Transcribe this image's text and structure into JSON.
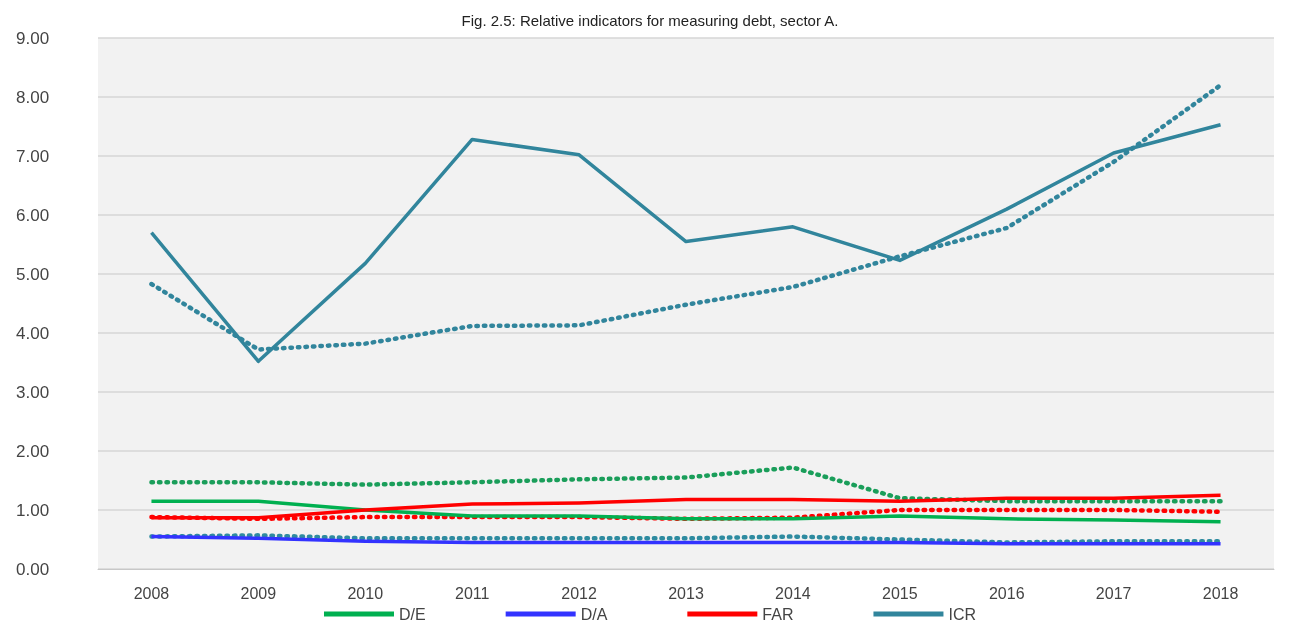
{
  "chart_data": {
    "type": "line",
    "title": "Fig. 2.5: Relative indicators for measuring debt, sector A.",
    "categories": [
      "2008",
      "2009",
      "2010",
      "2011",
      "2012",
      "2013",
      "2014",
      "2015",
      "2016",
      "2017",
      "2018"
    ],
    "series": [
      {
        "name": "D/E",
        "color": "#00b050",
        "values": [
          1.15,
          1.15,
          1.0,
          0.9,
          0.9,
          0.85,
          0.85,
          0.9,
          0.85,
          0.83,
          0.8
        ]
      },
      {
        "name": "D/A",
        "color": "#3333ff",
        "values": [
          0.55,
          0.52,
          0.47,
          0.45,
          0.45,
          0.45,
          0.45,
          0.45,
          0.43,
          0.43,
          0.43
        ]
      },
      {
        "name": "FAR",
        "color": "#ff0000",
        "values": [
          0.87,
          0.87,
          1.0,
          1.1,
          1.12,
          1.18,
          1.18,
          1.15,
          1.2,
          1.2,
          1.25
        ]
      },
      {
        "name": "ICR",
        "color": "#31859c",
        "values": [
          5.7,
          3.52,
          5.18,
          7.28,
          7.02,
          5.55,
          5.8,
          5.23,
          6.1,
          7.05,
          7.53
        ]
      },
      {
        "color": "#1a9e5a",
        "line_style": "dotted",
        "values": [
          1.47,
          1.47,
          1.43,
          1.47,
          1.52,
          1.55,
          1.72,
          1.2,
          1.15,
          1.15,
          1.15
        ]
      },
      {
        "color": "#2e8ba0",
        "line_style": "dotted",
        "values": [
          0.55,
          0.57,
          0.52,
          0.52,
          0.52,
          0.52,
          0.55,
          0.5,
          0.45,
          0.47,
          0.47
        ]
      },
      {
        "color": "#ff0000",
        "line_style": "dotted",
        "values": [
          0.88,
          0.85,
          0.88,
          0.88,
          0.88,
          0.85,
          0.87,
          1.0,
          1.0,
          1.0,
          0.97
        ]
      },
      {
        "color": "#31859c",
        "line_style": "dotted",
        "values": [
          4.83,
          3.72,
          3.82,
          4.12,
          4.13,
          4.48,
          4.78,
          5.3,
          5.78,
          6.9,
          8.2
        ]
      }
    ],
    "ylim": [
      0,
      9
    ],
    "yticks": [
      {
        "value": 0,
        "label": "0.00"
      },
      {
        "value": 1,
        "label": "1.00"
      },
      {
        "value": 2,
        "label": "2.00"
      },
      {
        "value": 3,
        "label": "3.00"
      },
      {
        "value": 4,
        "label": "4.00"
      },
      {
        "value": 5,
        "label": "5.00"
      },
      {
        "value": 6,
        "label": "6.00"
      },
      {
        "value": 7,
        "label": "7.00"
      },
      {
        "value": 8,
        "label": "8.00"
      },
      {
        "value": 9,
        "label": "9.00"
      }
    ],
    "grid": "y",
    "legend": "bottom",
    "marker": "none",
    "line_style": "solid"
  }
}
